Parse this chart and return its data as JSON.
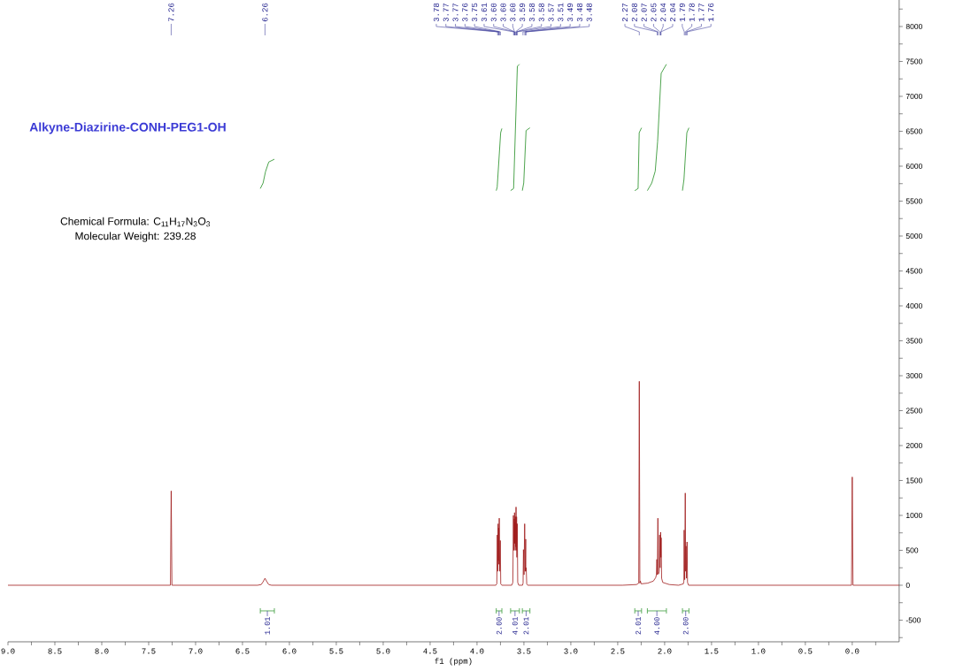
{
  "chart_data": {
    "type": "line",
    "title": "Alkyne-Diazirine-CONH-PEG1-OH",
    "xlabel": "f1 (ppm)",
    "xlim": [
      9.0,
      -0.5
    ],
    "ylim": [
      -810,
      8380
    ],
    "xticks": [
      {
        "value": 9,
        "label": "9.0"
      },
      8.5,
      {
        "value": 8,
        "label": "8.0"
      },
      7.5,
      {
        "value": 7,
        "label": "7.0"
      },
      6.5,
      {
        "value": 6,
        "label": "6.0"
      },
      5.5,
      {
        "value": 5,
        "label": "5.0"
      },
      4.5,
      {
        "value": 4,
        "label": "4.0"
      },
      3.5,
      {
        "value": 3,
        "label": "3.0"
      },
      2.5,
      {
        "value": 2,
        "label": "2.0"
      },
      1.5,
      {
        "value": 1,
        "label": "1.0"
      },
      0.5,
      {
        "value": 0,
        "label": "0.0"
      }
    ],
    "yticks": [
      -500,
      0,
      500,
      1000,
      1500,
      2000,
      2500,
      3000,
      3500,
      4000,
      4500,
      5000,
      5500,
      6000,
      6500,
      7000,
      7500,
      8000
    ],
    "series": [
      {
        "color": "#a01c1c",
        "x": [
          9.0,
          7.4,
          7.268,
          7.26,
          7.252,
          6.34,
          6.3,
          6.28,
          6.26,
          6.24,
          6.22,
          6.19,
          3.8,
          3.789,
          3.784,
          3.779,
          3.775,
          3.772,
          3.77,
          3.766,
          3.763,
          3.758,
          3.752,
          3.747,
          3.735,
          3.63,
          3.618,
          3.612,
          3.608,
          3.604,
          3.602,
          3.6,
          3.598,
          3.596,
          3.593,
          3.59,
          3.587,
          3.584,
          3.581,
          3.578,
          3.575,
          3.571,
          3.566,
          3.555,
          3.515,
          3.509,
          3.505,
          3.499,
          3.492,
          3.486,
          3.481,
          3.479,
          3.476,
          3.47,
          3.46,
          2.7,
          2.45,
          2.3,
          2.276,
          2.27,
          2.264,
          2.258,
          2.25,
          2.18,
          2.12,
          2.095,
          2.088,
          2.083,
          2.078,
          2.072,
          2.066,
          2.058,
          2.053,
          2.048,
          2.043,
          2.04,
          2.037,
          2.032,
          2.02,
          1.95,
          1.85,
          1.8,
          1.795,
          1.792,
          1.786,
          1.78,
          1.776,
          1.772,
          1.767,
          1.761,
          1.756,
          1.745,
          0.1,
          0.008,
          0.0,
          -0.008,
          -0.5
        ],
        "values": [
          0,
          0,
          0,
          1350,
          0,
          0,
          10,
          50,
          100,
          50,
          10,
          0,
          0,
          20,
          720,
          200,
          880,
          350,
          820,
          300,
          960,
          200,
          640,
          20,
          0,
          0,
          40,
          1000,
          500,
          950,
          600,
          1040,
          600,
          900,
          500,
          980,
          550,
          1120,
          500,
          980,
          400,
          880,
          40,
          0,
          0,
          30,
          510,
          150,
          880,
          200,
          660,
          200,
          250,
          20,
          0,
          0,
          0,
          10,
          30,
          2920,
          30,
          60,
          20,
          30,
          60,
          110,
          150,
          370,
          150,
          960,
          160,
          200,
          720,
          250,
          760,
          400,
          680,
          100,
          40,
          10,
          0,
          20,
          60,
          790,
          80,
          1320,
          200,
          560,
          100,
          620,
          40,
          0,
          0,
          0,
          1550,
          0,
          0
        ]
      },
      {
        "color": "#3a9a3a",
        "x": [
          6.31,
          6.28,
          6.255,
          6.22,
          6.16
        ],
        "values": [
          5680,
          5760,
          5920,
          6060,
          6100
        ]
      },
      {
        "color": "#3a9a3a",
        "x": [
          3.795,
          3.785,
          3.748,
          3.735
        ],
        "values": [
          5650,
          5700,
          6480,
          6540
        ]
      },
      {
        "color": "#3a9a3a",
        "x": [
          3.642,
          3.61,
          3.57,
          3.548
        ],
        "values": [
          5650,
          5680,
          7430,
          7460
        ]
      },
      {
        "color": "#3a9a3a",
        "x": [
          3.517,
          3.502,
          3.477,
          3.436
        ],
        "values": [
          5650,
          5760,
          6510,
          6550
        ]
      },
      {
        "color": "#3a9a3a",
        "x": [
          2.318,
          2.283,
          2.271,
          2.246
        ],
        "values": [
          5650,
          5680,
          6480,
          6550
        ]
      },
      {
        "color": "#3a9a3a",
        "x": [
          2.184,
          2.137,
          2.1,
          2.075,
          2.037,
          1.981
        ],
        "values": [
          5650,
          5760,
          5930,
          6350,
          7330,
          7460
        ]
      },
      {
        "color": "#3a9a3a",
        "x": [
          1.81,
          1.794,
          1.763,
          1.741
        ],
        "values": [
          5650,
          5810,
          6480,
          6550
        ]
      }
    ],
    "annotations": [
      {
        "text": "7.26",
        "x": 7.26
      },
      {
        "text": "6.26",
        "x": 6.26
      },
      {
        "text": "3.78",
        "x": 3.78
      },
      {
        "text": "3.77",
        "x": 3.77
      },
      {
        "text": "3.77",
        "x": 3.77
      },
      {
        "text": "3.76",
        "x": 3.76
      },
      {
        "text": "3.75",
        "x": 3.75
      },
      {
        "text": "3.61",
        "x": 3.61
      },
      {
        "text": "3.60",
        "x": 3.6
      },
      {
        "text": "3.60",
        "x": 3.6
      },
      {
        "text": "3.60",
        "x": 3.6
      },
      {
        "text": "3.59",
        "x": 3.59
      },
      {
        "text": "3.58",
        "x": 3.58
      },
      {
        "text": "3.58",
        "x": 3.58
      },
      {
        "text": "3.57",
        "x": 3.57
      },
      {
        "text": "3.51",
        "x": 3.51
      },
      {
        "text": "3.49",
        "x": 3.49
      },
      {
        "text": "3.48",
        "x": 3.48
      },
      {
        "text": "3.48",
        "x": 3.48
      },
      {
        "text": "2.27",
        "x": 2.27
      },
      {
        "text": "2.08",
        "x": 2.08
      },
      {
        "text": "2.07",
        "x": 2.07
      },
      {
        "text": "2.05",
        "x": 2.05
      },
      {
        "text": "2.04",
        "x": 2.04
      },
      {
        "text": "2.04",
        "x": 2.04
      },
      {
        "text": "1.79",
        "x": 1.79
      },
      {
        "text": "1.78",
        "x": 1.78
      },
      {
        "text": "1.77",
        "x": 1.77
      },
      {
        "text": "1.76",
        "x": 1.76
      },
      "Chemical Formula: C$_{11}$H$_{17}$N$_{3}$O$_{3}$",
      "Molecular Weight: 239.28",
      "1.01",
      "2.00",
      "4.01",
      "2.01",
      "2.01",
      "4.00",
      "2.00"
    ]
  }
}
